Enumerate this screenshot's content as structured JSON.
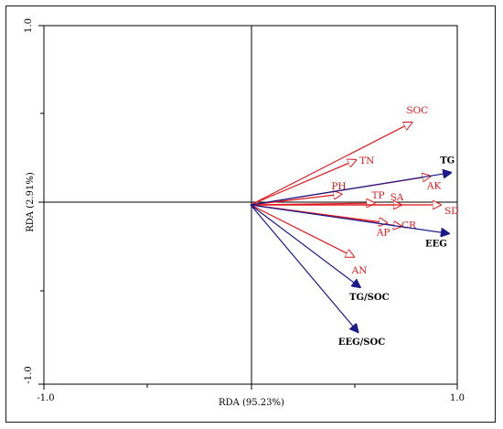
{
  "chart_data": {
    "type": "scatter",
    "subtype": "rda-biplot",
    "xlabel": "RDA (95.23%)",
    "ylabel": "RDA (2.91%)",
    "xlim": [
      -1.0,
      1.0
    ],
    "ylim": [
      -1.0,
      1.0
    ],
    "x_tick_labels": [
      "-1.0",
      "1.0"
    ],
    "y_tick_labels": [
      "-1.0",
      "1.0"
    ],
    "grid": false,
    "colors": {
      "environmental": "#e0161b",
      "response": "#1a1a8a",
      "axis": "#000000"
    },
    "environmental_vectors": [
      {
        "label": "SOC",
        "x": 0.78,
        "y": 0.46
      },
      {
        "label": "TN",
        "x": 0.51,
        "y": 0.25
      },
      {
        "label": "PH",
        "x": 0.44,
        "y": 0.06
      },
      {
        "label": "TP",
        "x": 0.6,
        "y": 0.01
      },
      {
        "label": "SA",
        "x": 0.73,
        "y": 0.0
      },
      {
        "label": "SD",
        "x": 0.92,
        "y": 0.0
      },
      {
        "label": "AK",
        "x": 0.87,
        "y": 0.16
      },
      {
        "label": "CR",
        "x": 0.73,
        "y": -0.12
      },
      {
        "label": "AP",
        "x": 0.66,
        "y": -0.1
      },
      {
        "label": "AN",
        "x": 0.5,
        "y": -0.29
      }
    ],
    "response_vectors": [
      {
        "label": "TG",
        "x": 0.97,
        "y": 0.18
      },
      {
        "label": "EEG",
        "x": 0.96,
        "y": -0.16
      },
      {
        "label": "TG/SOC",
        "x": 0.53,
        "y": -0.46
      },
      {
        "label": "EEG/SOC",
        "x": 0.52,
        "y": -0.71
      }
    ]
  }
}
